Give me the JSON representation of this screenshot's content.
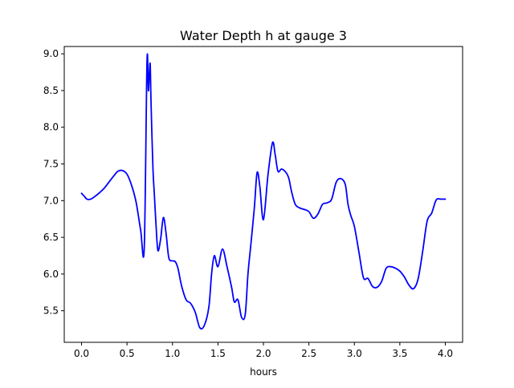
{
  "chart_data": {
    "type": "line",
    "title": "Water Depth h at gauge 3",
    "xlabel": "hours",
    "ylabel": "",
    "xlim": [
      -0.19,
      4.19
    ],
    "ylim": [
      5.07,
      9.1
    ],
    "xticks": [
      0.0,
      0.5,
      1.0,
      1.5,
      2.0,
      2.5,
      3.0,
      3.5,
      4.0
    ],
    "xtick_labels": [
      "0.0",
      "0.5",
      "1.0",
      "1.5",
      "2.0",
      "2.5",
      "3.0",
      "3.5",
      "4.0"
    ],
    "yticks": [
      5.5,
      6.0,
      6.5,
      7.0,
      7.5,
      8.0,
      8.5,
      9.0
    ],
    "ytick_labels": [
      "5.5",
      "6.0",
      "6.5",
      "7.0",
      "7.5",
      "8.0",
      "8.5",
      "9.0"
    ],
    "grid": false,
    "legend": "none",
    "series": [
      {
        "color": "#0000ff",
        "x": [
          0.0,
          0.03,
          0.06,
          0.1,
          0.15,
          0.2,
          0.25,
          0.3,
          0.35,
          0.4,
          0.45,
          0.5,
          0.55,
          0.6,
          0.65,
          0.69,
          0.72,
          0.735,
          0.745,
          0.755,
          0.765,
          0.785,
          0.8,
          0.82,
          0.84,
          0.87,
          0.9,
          0.93,
          0.96,
          1.0,
          1.03,
          1.06,
          1.1,
          1.15,
          1.2,
          1.25,
          1.3,
          1.35,
          1.4,
          1.43,
          1.46,
          1.5,
          1.55,
          1.6,
          1.65,
          1.68,
          1.72,
          1.76,
          1.8,
          1.83,
          1.86,
          1.9,
          1.93,
          1.96,
          2.0,
          2.05,
          2.1,
          2.13,
          2.16,
          2.2,
          2.25,
          2.28,
          2.31,
          2.35,
          2.4,
          2.45,
          2.5,
          2.55,
          2.6,
          2.65,
          2.7,
          2.75,
          2.8,
          2.85,
          2.9,
          2.93,
          2.96,
          3.0,
          3.05,
          3.1,
          3.15,
          3.2,
          3.25,
          3.3,
          3.35,
          3.4,
          3.45,
          3.5,
          3.55,
          3.6,
          3.65,
          3.7,
          3.75,
          3.8,
          3.85,
          3.9,
          3.95,
          4.0
        ],
        "y": [
          7.1,
          7.06,
          7.02,
          7.02,
          7.06,
          7.11,
          7.17,
          7.25,
          7.33,
          7.4,
          7.41,
          7.36,
          7.21,
          6.98,
          6.6,
          6.37,
          8.9,
          8.5,
          8.7,
          8.86,
          8.3,
          7.45,
          7.1,
          6.65,
          6.32,
          6.48,
          6.77,
          6.55,
          6.22,
          6.18,
          6.17,
          6.08,
          5.84,
          5.65,
          5.6,
          5.48,
          5.27,
          5.3,
          5.55,
          6.0,
          6.25,
          6.1,
          6.34,
          6.1,
          5.82,
          5.62,
          5.65,
          5.41,
          5.45,
          6.0,
          6.38,
          6.9,
          7.38,
          7.2,
          6.74,
          7.35,
          7.79,
          7.62,
          7.4,
          7.43,
          7.38,
          7.3,
          7.12,
          6.95,
          6.9,
          6.88,
          6.85,
          6.76,
          6.82,
          6.95,
          6.97,
          7.02,
          7.25,
          7.3,
          7.22,
          6.95,
          6.8,
          6.65,
          6.3,
          5.95,
          5.94,
          5.83,
          5.82,
          5.9,
          6.08,
          6.1,
          6.08,
          6.04,
          5.96,
          5.85,
          5.8,
          5.93,
          6.3,
          6.72,
          6.83,
          7.01,
          7.02,
          7.02
        ]
      }
    ]
  }
}
